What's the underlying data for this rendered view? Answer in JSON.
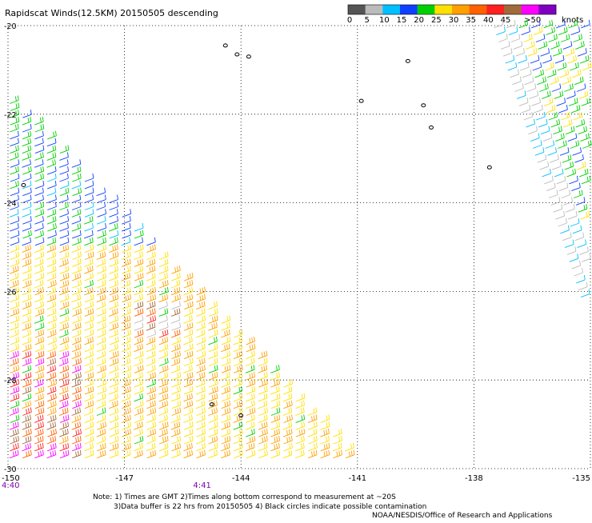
{
  "chart_data": {
    "type": "scatter",
    "title": "Rapidscat Winds(12.5KM) 20150505 descending",
    "xlabel": "",
    "ylabel": "",
    "xlim": [
      -150,
      -135
    ],
    "ylim": [
      -30,
      -20
    ],
    "grid": true,
    "x_ticks": [
      "-150",
      "-147",
      "-144",
      "-141",
      "-138",
      "-135"
    ],
    "y_ticks": [
      "-20",
      "-22",
      "-24",
      "-26",
      "-28",
      "-30"
    ],
    "time_labels": [
      {
        "lon": -150,
        "label": "4:40"
      },
      {
        "lon": -145,
        "label": "4:41"
      }
    ],
    "legend": {
      "position": "top-right",
      "unit_label": "knots",
      "ticks": [
        "0",
        "5",
        "10",
        "15",
        "20",
        "25",
        "30",
        "35",
        "40",
        "45",
        ">50"
      ],
      "colors": [
        "#555555",
        "#bbbbbb",
        "#00c0ff",
        "#1040ff",
        "#00d000",
        "#ffe000",
        "#ffa000",
        "#ff6000",
        "#ff2020",
        "#a06a3a",
        "#ff00ff",
        "#8000c0"
      ]
    },
    "series": [
      {
        "swath": "east",
        "lon_range": [
          -137.5,
          -135
        ],
        "lat_range": [
          -27,
          -20
        ],
        "description_speed_knots": [
          10,
          25
        ]
      },
      {
        "swath": "west",
        "lon_range": [
          -150,
          -140.8
        ],
        "lat_range": [
          -30,
          -21.5
        ],
        "description_speed_knots": [
          0,
          50
        ]
      }
    ]
  },
  "notes": {
    "line1": "Note: 1) Times are GMT 2)Times along bottom correspond to measurement at ~20S",
    "line2": "3)Data buffer is 22 hrs from 20150505 4) Black circles indicate possible contamination",
    "credit": "NOAA/NESDIS/Office of Research and Applications"
  },
  "colors": {
    "time_label": "#7b00a8",
    "coast": "#000000",
    "grid": "#000000"
  }
}
